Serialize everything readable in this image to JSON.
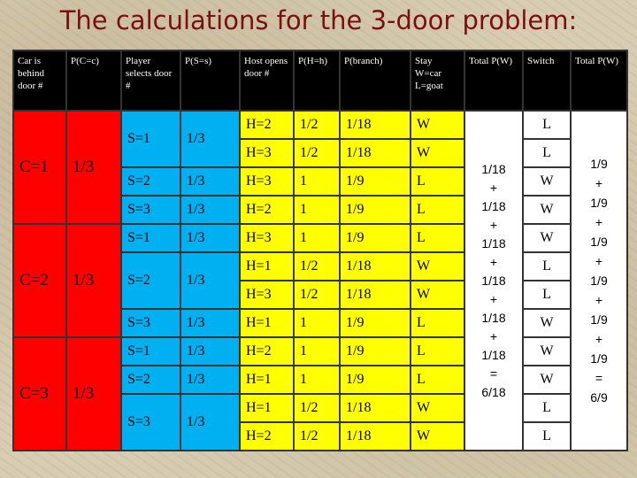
{
  "title": "The calculations for the 3-door problem:",
  "headers": [
    "Car is behind door #",
    "P(C=c)",
    "Player selects door #",
    "P(S=s)",
    "Host opens door #",
    "P(H=h)",
    "P(branch)",
    "Stay W=car L=goat",
    "Total P(W)",
    "Switch",
    "Total P(W)"
  ],
  "groups": [
    {
      "car": "C=1",
      "pc": "1/3"
    },
    {
      "car": "C=2",
      "pc": "1/3"
    },
    {
      "car": "C=3",
      "pc": "1/3"
    }
  ],
  "rows": [
    {
      "s": "S=1",
      "ps": "1/3",
      "h": "H=2",
      "ph": "1/2",
      "pb": "1/18",
      "stay": "W",
      "sw": "L"
    },
    {
      "h": "H=3",
      "ph": "1/2",
      "pb": "1/18",
      "stay": "W",
      "sw": "L"
    },
    {
      "s": "S=2",
      "ps": "1/3",
      "h": "H=3",
      "ph": "1",
      "pb": "1/9",
      "stay": "L",
      "sw": "W"
    },
    {
      "s": "S=3",
      "ps": "1/3",
      "h": "H=2",
      "ph": "1",
      "pb": "1/9",
      "stay": "L",
      "sw": "W"
    },
    {
      "s": "S=1",
      "ps": "1/3",
      "h": "H=3",
      "ph": "1",
      "pb": "1/9",
      "stay": "L",
      "sw": "W"
    },
    {
      "s": "S=2",
      "ps": "1/3",
      "h": "H=1",
      "ph": "1/2",
      "pb": "1/18",
      "stay": "W",
      "sw": "L"
    },
    {
      "h": "H=3",
      "ph": "1/2",
      "pb": "1/18",
      "stay": "W",
      "sw": "L"
    },
    {
      "s": "S=3",
      "ps": "1/3",
      "h": "H=1",
      "ph": "1",
      "pb": "1/9",
      "stay": "L",
      "sw": "W"
    },
    {
      "s": "S=1",
      "ps": "1/3",
      "h": "H=2",
      "ph": "1",
      "pb": "1/9",
      "stay": "L",
      "sw": "W"
    },
    {
      "s": "S=2",
      "ps": "1/3",
      "h": "H=1",
      "ph": "1",
      "pb": "1/9",
      "stay": "L",
      "sw": "W"
    },
    {
      "s": "S=3",
      "ps": "1/3",
      "h": "H=1",
      "ph": "1/2",
      "pb": "1/18",
      "stay": "W",
      "sw": "L"
    },
    {
      "h": "H=2",
      "ph": "1/2",
      "pb": "1/18",
      "stay": "W",
      "sw": "L"
    }
  ],
  "stay_total": [
    "1/18",
    "+",
    "1/18",
    "+",
    "1/18",
    "+",
    "1/18",
    "+",
    "1/18",
    "+",
    "1/18",
    "=",
    "6/18"
  ],
  "switch_total": [
    "1/9",
    "+",
    "1/9",
    "+",
    "1/9",
    "+",
    "1/9",
    "+",
    "1/9",
    "+",
    "1/9",
    "=",
    "6/9"
  ]
}
